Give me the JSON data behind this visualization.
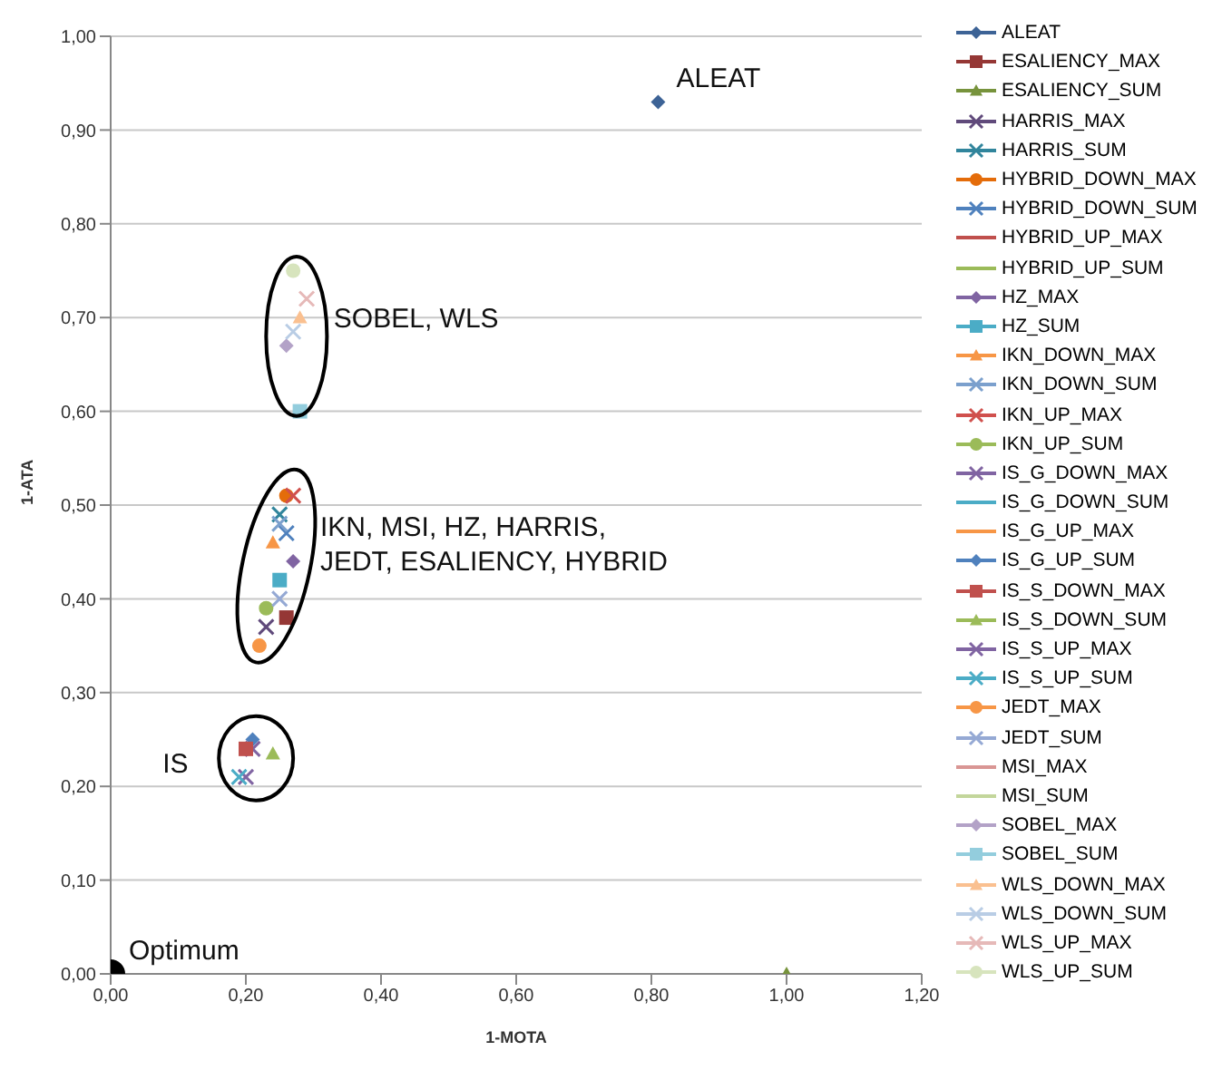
{
  "chart_data": {
    "type": "scatter",
    "xlabel": "1-MOTA",
    "ylabel": "1-ATA",
    "xlim": [
      0,
      1.2
    ],
    "xticks": [
      {
        "value": 0,
        "label": "0,00"
      },
      {
        "value": 0.2,
        "label": "0,20"
      },
      {
        "value": 0.4,
        "label": "0,40"
      },
      {
        "value": 0.6,
        "label": "0,60"
      },
      {
        "value": 0.8,
        "label": "0,80"
      },
      {
        "value": 1,
        "label": "1,00"
      },
      {
        "value": 1.2,
        "label": "1,20"
      }
    ],
    "ylim": [
      0,
      1
    ],
    "yticks": [
      {
        "value": 0,
        "label": "0,00"
      },
      {
        "value": 0.1,
        "label": "0,10"
      },
      {
        "value": 0.2,
        "label": "0,20"
      },
      {
        "value": 0.3,
        "label": "0,30"
      },
      {
        "value": 0.4,
        "label": "0,40"
      },
      {
        "value": 0.5,
        "label": "0,50"
      },
      {
        "value": 0.6,
        "label": "0,60"
      },
      {
        "value": 0.7,
        "label": "0,70"
      },
      {
        "value": 0.8,
        "label": "0,80"
      },
      {
        "value": 0.9,
        "label": "0,90"
      },
      {
        "value": 1,
        "label": "1,00"
      }
    ],
    "grid": "y",
    "legend": "right",
    "annotations": [
      {
        "text": "ALEAT",
        "x": 0.81,
        "y": 0.93
      },
      {
        "text": "Optimum",
        "x": 0,
        "y": 0
      },
      "SOBEL, WLS",
      "IKN, MSI, HZ, HARRIS,\nJEDT, ESALIENCY, HYBRID",
      "IS"
    ],
    "series": [
      {
        "name": "ALEAT",
        "color": "#3d6396",
        "marker": "diamond",
        "x": [
          0.81
        ],
        "values": [
          0.93
        ]
      },
      {
        "name": "ESALIENCY_MAX",
        "color": "#953735",
        "marker": "square",
        "x": [
          0.26
        ],
        "values": [
          0.38
        ]
      },
      {
        "name": "ESALIENCY_SUM",
        "color": "#77933c",
        "marker": "triangle",
        "x": [
          1.0
        ],
        "values": [
          0.0
        ]
      },
      {
        "name": "HARRIS_MAX",
        "color": "#604a7b",
        "marker": "cross",
        "x": [
          0.23
        ],
        "values": [
          0.37
        ]
      },
      {
        "name": "HARRIS_SUM",
        "color": "#31859c",
        "marker": "cross",
        "x": [
          0.25
        ],
        "values": [
          0.49
        ]
      },
      {
        "name": "HYBRID_DOWN_MAX",
        "color": "#e46c0a",
        "marker": "circle",
        "x": [
          0.26
        ],
        "values": [
          0.51
        ]
      },
      {
        "name": "HYBRID_DOWN_SUM",
        "color": "#4f81bd",
        "marker": "cross",
        "x": [
          0.26
        ],
        "values": [
          0.47
        ]
      },
      {
        "name": "HYBRID_UP_MAX",
        "color": "#c0504d",
        "marker": "none",
        "x": [
          null
        ],
        "values": [
          null
        ]
      },
      {
        "name": "HYBRID_UP_SUM",
        "color": "#9bbb59",
        "marker": "none",
        "x": [
          null
        ],
        "values": [
          null
        ]
      },
      {
        "name": "HZ_MAX",
        "color": "#8064a2",
        "marker": "diamond",
        "x": [
          0.27
        ],
        "values": [
          0.44
        ]
      },
      {
        "name": "HZ_SUM",
        "color": "#4bacc6",
        "marker": "square",
        "x": [
          0.25
        ],
        "values": [
          0.42
        ]
      },
      {
        "name": "IKN_DOWN_MAX",
        "color": "#f79646",
        "marker": "triangle",
        "x": [
          0.24
        ],
        "values": [
          0.46
        ]
      },
      {
        "name": "IKN_DOWN_SUM",
        "color": "#7ba0cd",
        "marker": "cross",
        "x": [
          0.25
        ],
        "values": [
          0.48
        ]
      },
      {
        "name": "IKN_UP_MAX",
        "color": "#d0504d",
        "marker": "cross",
        "x": [
          0.27
        ],
        "values": [
          0.51
        ]
      },
      {
        "name": "IKN_UP_SUM",
        "color": "#9bbb59",
        "marker": "circle",
        "x": [
          0.23
        ],
        "values": [
          0.39
        ]
      },
      {
        "name": "IS_G_DOWN_MAX",
        "color": "#8064a2",
        "marker": "cross",
        "x": [
          0.21
        ],
        "values": [
          0.24
        ]
      },
      {
        "name": "IS_G_DOWN_SUM",
        "color": "#4bacc6",
        "marker": "none",
        "x": [
          null
        ],
        "values": [
          null
        ]
      },
      {
        "name": "IS_G_UP_MAX",
        "color": "#f79646",
        "marker": "none",
        "x": [
          null
        ],
        "values": [
          null
        ]
      },
      {
        "name": "IS_G_UP_SUM",
        "color": "#4f81bd",
        "marker": "diamond",
        "x": [
          0.21
        ],
        "values": [
          0.25
        ]
      },
      {
        "name": "IS_S_DOWN_MAX",
        "color": "#c0504d",
        "marker": "square",
        "x": [
          0.2
        ],
        "values": [
          0.24
        ]
      },
      {
        "name": "IS_S_DOWN_SUM",
        "color": "#9bbb59",
        "marker": "triangle",
        "x": [
          0.24
        ],
        "values": [
          0.235
        ]
      },
      {
        "name": "IS_S_UP_MAX",
        "color": "#8064a2",
        "marker": "cross",
        "x": [
          0.2
        ],
        "values": [
          0.21
        ]
      },
      {
        "name": "IS_S_UP_SUM",
        "color": "#4bacc6",
        "marker": "cross",
        "x": [
          0.19
        ],
        "values": [
          0.21
        ]
      },
      {
        "name": "JEDT_MAX",
        "color": "#f79646",
        "marker": "circle",
        "x": [
          0.22
        ],
        "values": [
          0.35
        ]
      },
      {
        "name": "JEDT_SUM",
        "color": "#95a9d4",
        "marker": "cross",
        "x": [
          0.25
        ],
        "values": [
          0.4
        ]
      },
      {
        "name": "MSI_MAX",
        "color": "#d99694",
        "marker": "none",
        "x": [
          null
        ],
        "values": [
          null
        ]
      },
      {
        "name": "MSI_SUM",
        "color": "#c3d69b",
        "marker": "none",
        "x": [
          null
        ],
        "values": [
          null
        ]
      },
      {
        "name": "SOBEL_MAX",
        "color": "#b3a2c7",
        "marker": "diamond",
        "x": [
          0.26
        ],
        "values": [
          0.67
        ]
      },
      {
        "name": "SOBEL_SUM",
        "color": "#93cddd",
        "marker": "square",
        "x": [
          0.28
        ],
        "values": [
          0.6
        ]
      },
      {
        "name": "WLS_DOWN_MAX",
        "color": "#fac090",
        "marker": "triangle",
        "x": [
          0.28
        ],
        "values": [
          0.7
        ]
      },
      {
        "name": "WLS_DOWN_SUM",
        "color": "#b9cde5",
        "marker": "cross",
        "x": [
          0.27
        ],
        "values": [
          0.685
        ]
      },
      {
        "name": "WLS_UP_MAX",
        "color": "#e6b9b8",
        "marker": "cross",
        "x": [
          0.29
        ],
        "values": [
          0.72
        ]
      },
      {
        "name": "WLS_UP_SUM",
        "color": "#d7e4bd",
        "marker": "circle",
        "x": [
          0.27
        ],
        "values": [
          0.75
        ]
      },
      {
        "color": "#000000",
        "marker": "circle",
        "x": [
          0
        ],
        "values": [
          0
        ]
      }
    ]
  }
}
